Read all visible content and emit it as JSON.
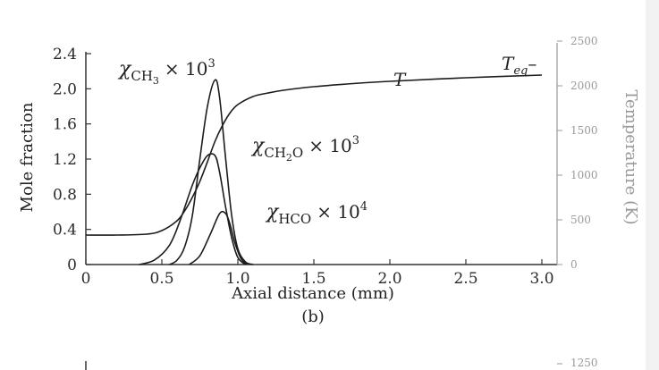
{
  "chart_data": {
    "type": "line",
    "panel_label": "(b)",
    "xlabel": "Axial distance (mm)",
    "ylabel": "Mole fraction",
    "y2label": "Temperature (K)",
    "xlim": [
      0,
      3.0
    ],
    "ylim": [
      0,
      2.4
    ],
    "y2lim": [
      0,
      2500
    ],
    "x_ticks": [
      "0",
      "0.5",
      "1.0",
      "1.5",
      "2.0",
      "2.5",
      "3.0"
    ],
    "y_ticks": [
      "0",
      "0.4",
      "0.8",
      "1.2",
      "1.6",
      "2.0",
      "2.4"
    ],
    "y2_ticks": [
      "0",
      "500",
      "1000",
      "1500",
      "2000",
      "2500"
    ],
    "next_panel_y2_tick": "1250",
    "grid": false,
    "series": [
      {
        "name": "T",
        "axis": "right",
        "x": [
          0,
          0.2,
          0.4,
          0.5,
          0.6,
          0.65,
          0.7,
          0.75,
          0.8,
          0.85,
          0.9,
          0.95,
          1.0,
          1.1,
          1.2,
          1.3,
          1.5,
          1.8,
          2.0,
          2.5,
          3.0
        ],
        "y": [
          330,
          330,
          340,
          380,
          490,
          600,
          750,
          930,
          1150,
          1380,
          1560,
          1700,
          1790,
          1880,
          1920,
          1950,
          1990,
          2030,
          2050,
          2090,
          2120
        ]
      },
      {
        "name": "χCH3 × 10^3",
        "axis": "left",
        "x": [
          0.55,
          0.6,
          0.65,
          0.7,
          0.75,
          0.8,
          0.85,
          0.88,
          0.92,
          0.96,
          1.0,
          1.05,
          1.1
        ],
        "y": [
          0,
          0.05,
          0.2,
          0.55,
          1.2,
          1.8,
          2.1,
          1.9,
          1.2,
          0.55,
          0.18,
          0.03,
          0
        ]
      },
      {
        "name": "χCH2O × 10^3",
        "axis": "left",
        "x": [
          0.35,
          0.45,
          0.55,
          0.62,
          0.7,
          0.75,
          0.8,
          0.85,
          0.88,
          0.92,
          0.96,
          1.0,
          1.05
        ],
        "y": [
          0,
          0.05,
          0.22,
          0.5,
          0.9,
          1.1,
          1.24,
          1.24,
          1.05,
          0.65,
          0.3,
          0.08,
          0
        ]
      },
      {
        "name": "χHCO × 10^4",
        "axis": "left",
        "x": [
          0.68,
          0.75,
          0.82,
          0.88,
          0.92,
          0.95,
          0.98,
          1.02,
          1.06
        ],
        "y": [
          0,
          0.1,
          0.35,
          0.58,
          0.58,
          0.45,
          0.25,
          0.07,
          0
        ]
      }
    ],
    "annotations": {
      "ch3": {
        "chi": "χ",
        "sub": "CH",
        "subsub": "3",
        "rest": "× 10",
        "sup": "3"
      },
      "ch2o": {
        "chi": "χ",
        "sub": "CH",
        "subsub": "2",
        "sub2": "O",
        "rest": "× 10",
        "sup": "3"
      },
      "hco": {
        "chi": "χ",
        "sub": "HCO",
        "rest": "× 10",
        "sup": "4"
      },
      "t_label": "T",
      "teq": {
        "main": "T",
        "sub": "eq",
        "dash": "–"
      }
    }
  }
}
